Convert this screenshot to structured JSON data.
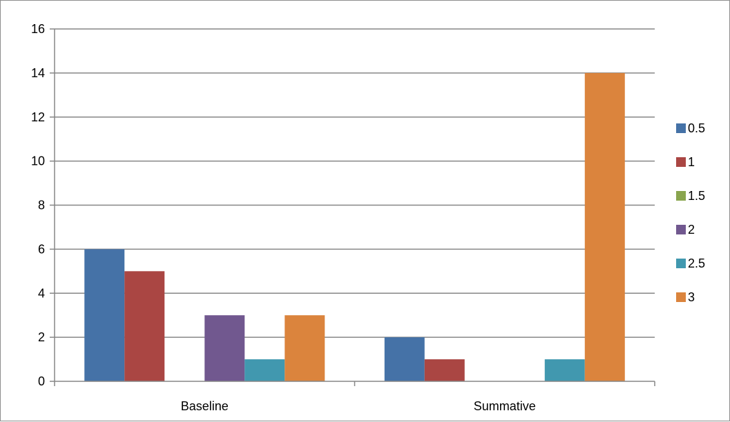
{
  "chart_data": {
    "type": "bar",
    "title": "",
    "xlabel": "",
    "ylabel": "",
    "categories": [
      "Baseline",
      "Summative"
    ],
    "series": [
      {
        "name": "0.5",
        "values": [
          6,
          2
        ],
        "color": "#4572A7"
      },
      {
        "name": "1",
        "values": [
          5,
          1
        ],
        "color": "#AA4643"
      },
      {
        "name": "1.5",
        "values": [
          0,
          0
        ],
        "color": "#89A54E"
      },
      {
        "name": "2",
        "values": [
          3,
          0
        ],
        "color": "#71588F"
      },
      {
        "name": "2.5",
        "values": [
          1,
          1
        ],
        "color": "#4198AF"
      },
      {
        "name": "3",
        "values": [
          3,
          14
        ],
        "color": "#DB843D"
      }
    ],
    "ylim": [
      0,
      16
    ],
    "yticks": [
      "0",
      "2",
      "4",
      "6",
      "8",
      "10",
      "12",
      "14",
      "16"
    ],
    "grid": true,
    "legend_position": "right"
  }
}
